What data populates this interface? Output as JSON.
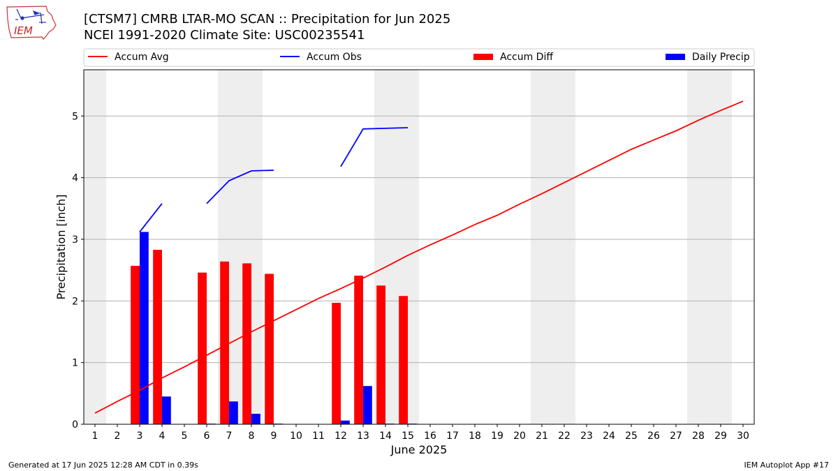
{
  "header": {
    "title_line1": "[CTSM7] CMRB LTAR-MO SCAN :: Precipitation for Jun 2025",
    "title_line2": "NCEI 1991-2020 Climate Site: USC00235541",
    "logo_text": "IEM"
  },
  "footer": {
    "generated": "Generated at 17 Jun 2025 12:28 AM CDT in 0.39s",
    "app": "IEM Autoplot App #17"
  },
  "colors": {
    "accum_avg": "#ff0000",
    "accum_obs": "#0000ff",
    "accum_diff": "#ff0000",
    "daily_precip": "#0000ff",
    "weekend_shade": "#eeeeee",
    "grid": "#b0b0b0"
  },
  "chart_data": {
    "type": "bar",
    "xlabel": "June 2025",
    "ylabel": "Precipitation [inch]",
    "x": [
      1,
      2,
      3,
      4,
      5,
      6,
      7,
      8,
      9,
      10,
      11,
      12,
      13,
      14,
      15,
      16,
      17,
      18,
      19,
      20,
      21,
      22,
      23,
      24,
      25,
      26,
      27,
      28,
      29,
      30
    ],
    "x_tick_labels": [
      "1",
      "2",
      "3",
      "4",
      "5",
      "6",
      "7",
      "8",
      "9",
      "10",
      "11",
      "12",
      "13",
      "14",
      "15",
      "16",
      "17",
      "18",
      "19",
      "20",
      "21",
      "22",
      "23",
      "24",
      "25",
      "26",
      "27",
      "28",
      "29",
      "30"
    ],
    "ylim": [
      0,
      5.75
    ],
    "y_ticks": [
      0,
      1,
      2,
      3,
      4,
      5
    ],
    "y_tick_labels": [
      "0",
      "1",
      "2",
      "3",
      "4",
      "5"
    ],
    "grid": "horizontal",
    "legend_position": "top",
    "shaded_days": [
      1,
      7,
      8,
      14,
      15,
      21,
      22,
      28,
      29
    ],
    "legend": [
      {
        "label": "Accum Avg",
        "kind": "line",
        "color": "#ff0000"
      },
      {
        "label": "Accum Obs",
        "kind": "line",
        "color": "#0000ff"
      },
      {
        "label": "Accum Diff",
        "kind": "bar",
        "color": "#ff0000"
      },
      {
        "label": "Daily Precip",
        "kind": "bar",
        "color": "#0000ff"
      }
    ],
    "series": [
      {
        "name": "Accum Avg",
        "type": "line",
        "color": "#ff0000",
        "values": [
          0.18,
          0.37,
          0.55,
          0.75,
          0.93,
          1.12,
          1.31,
          1.5,
          1.68,
          1.86,
          2.04,
          2.2,
          2.37,
          2.55,
          2.74,
          2.91,
          3.07,
          3.24,
          3.39,
          3.57,
          3.74,
          3.92,
          4.1,
          4.28,
          4.46,
          4.61,
          4.76,
          4.93,
          5.09,
          5.24
        ]
      },
      {
        "name": "Accum Obs",
        "type": "line",
        "color": "#0000ff",
        "values": [
          null,
          null,
          3.12,
          3.58,
          null,
          3.58,
          3.95,
          4.11,
          4.12,
          null,
          null,
          4.18,
          4.79,
          4.8,
          4.81,
          null,
          null,
          null,
          null,
          null,
          null,
          null,
          null,
          null,
          null,
          null,
          null,
          null,
          null,
          null
        ]
      },
      {
        "name": "Accum Diff",
        "type": "bar",
        "color": "#ff0000",
        "values": [
          null,
          null,
          2.57,
          2.83,
          null,
          2.46,
          2.64,
          2.61,
          2.44,
          null,
          null,
          1.97,
          2.41,
          2.25,
          2.08,
          null,
          null,
          null,
          null,
          null,
          null,
          null,
          null,
          null,
          null,
          null,
          null,
          null,
          null,
          null
        ]
      },
      {
        "name": "Daily Precip",
        "type": "bar",
        "color": "#0000ff",
        "values": [
          null,
          null,
          3.12,
          0.45,
          null,
          0.01,
          0.37,
          0.17,
          0.01,
          null,
          null,
          0.06,
          0.62,
          0.01,
          0.01,
          null,
          null,
          null,
          null,
          null,
          null,
          null,
          null,
          null,
          null,
          null,
          null,
          null,
          null,
          null
        ]
      }
    ]
  }
}
